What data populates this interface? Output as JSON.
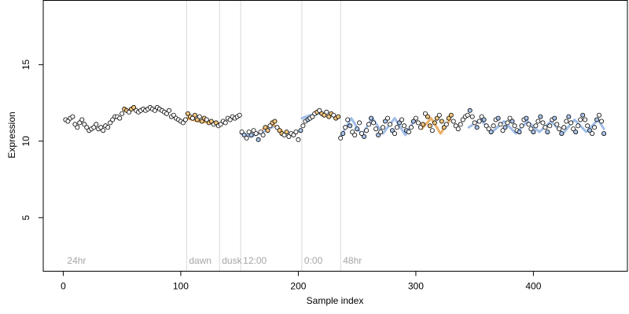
{
  "chart_data": {
    "type": "scatter",
    "title": "",
    "xlabel": "Sample index",
    "ylabel": "Expression",
    "xlim": [
      -17,
      480
    ],
    "ylim": [
      1.5,
      19.2
    ],
    "x_ticks": [
      0,
      100,
      200,
      300,
      400
    ],
    "y_ticks": [
      5,
      10,
      15
    ],
    "grid": false,
    "legend": "none",
    "phase_lines": [
      {
        "x": 105,
        "label": "dawn"
      },
      {
        "x": 133,
        "label": "dusk"
      },
      {
        "x": 151,
        "label": "12:00"
      },
      {
        "x": 203,
        "label": "0:00"
      },
      {
        "x": 236,
        "label": "48hr"
      }
    ],
    "corner_label": {
      "x": 2,
      "label": "24hr"
    },
    "colors": {
      "point_fill_a": "#f4c77f",
      "point_fill_b": "#a9c4ea",
      "point_stroke": "#000000",
      "trend_a": "#e8a04a",
      "trend_b": "#8fb0e3",
      "phase_line": "#d9d9d9",
      "phase_label": "#a6a6a6"
    },
    "trend_segments": [
      {
        "series": "orange",
        "points": [
          [
            105,
            11.5
          ],
          [
            115,
            11.3
          ],
          [
            125,
            11.2
          ],
          [
            133,
            11.1
          ]
        ]
      },
      {
        "series": "blue",
        "points": [
          [
            151,
            10.5
          ],
          [
            160,
            10.3
          ],
          [
            170,
            10.6
          ],
          [
            180,
            11.0
          ]
        ]
      },
      {
        "series": "orange",
        "points": [
          [
            170,
            10.8
          ],
          [
            178,
            11.1
          ],
          [
            186,
            10.7
          ]
        ]
      },
      {
        "series": "blue",
        "points": [
          [
            203,
            11.5
          ],
          [
            210,
            11.7
          ],
          [
            218,
            11.8
          ]
        ]
      },
      {
        "series": "blue",
        "points": [
          [
            236,
            10.3
          ],
          [
            245,
            11.5
          ],
          [
            254,
            10.4
          ],
          [
            263,
            11.5
          ],
          [
            272,
            10.5
          ],
          [
            282,
            11.5
          ],
          [
            291,
            10.4
          ],
          [
            300,
            11.5
          ]
        ]
      },
      {
        "series": "orange",
        "points": [
          [
            305,
            10.8
          ],
          [
            313,
            11.5
          ],
          [
            321,
            10.5
          ],
          [
            329,
            11.4
          ]
        ]
      },
      {
        "series": "blue",
        "points": [
          [
            345,
            10.9
          ],
          [
            355,
            11.4
          ],
          [
            365,
            10.6
          ],
          [
            375,
            11.3
          ],
          [
            385,
            10.5
          ],
          [
            395,
            11.3
          ],
          [
            405,
            10.6
          ],
          [
            415,
            11.3
          ],
          [
            425,
            10.5
          ],
          [
            435,
            11.4
          ],
          [
            445,
            10.6
          ],
          [
            455,
            11.4
          ],
          [
            460,
            10.8
          ]
        ]
      }
    ],
    "series": [
      {
        "points": [
          [
            2,
            11.4
          ],
          [
            4,
            11.3
          ],
          [
            6,
            11.5
          ],
          [
            8,
            11.6
          ],
          [
            10,
            11.1
          ],
          [
            12,
            10.9
          ],
          [
            14,
            11.2
          ],
          [
            16,
            11.4
          ],
          [
            18,
            11.1
          ],
          [
            20,
            10.9
          ],
          [
            22,
            10.7
          ],
          [
            24,
            10.8
          ],
          [
            26,
            10.9
          ],
          [
            28,
            11.1
          ],
          [
            30,
            10.8
          ],
          [
            32,
            10.9
          ],
          [
            34,
            10.7
          ],
          [
            36,
            11.0
          ],
          [
            38,
            10.9
          ],
          [
            40,
            11.2
          ],
          [
            42,
            11.4
          ],
          [
            44,
            11.6
          ],
          [
            46,
            11.6
          ],
          [
            48,
            11.5
          ],
          [
            50,
            11.8
          ],
          [
            52,
            12.1
          ],
          [
            54,
            12.0
          ],
          [
            56,
            11.9
          ],
          [
            58,
            12.1
          ],
          [
            60,
            12.2
          ],
          [
            62,
            12.0
          ],
          [
            64,
            11.9
          ],
          [
            66,
            12.0
          ],
          [
            68,
            12.1
          ],
          [
            70,
            12.0
          ],
          [
            72,
            12.1
          ],
          [
            74,
            12.2
          ],
          [
            76,
            12.1
          ],
          [
            78,
            12.0
          ],
          [
            80,
            12.2
          ],
          [
            82,
            12.1
          ],
          [
            84,
            12.0
          ],
          [
            86,
            11.9
          ],
          [
            88,
            11.8
          ],
          [
            90,
            12.0
          ],
          [
            92,
            11.6
          ],
          [
            94,
            11.7
          ],
          [
            96,
            11.5
          ],
          [
            98,
            11.4
          ],
          [
            100,
            11.3
          ],
          [
            102,
            11.2
          ],
          [
            104,
            11.4
          ],
          [
            106,
            11.8
          ],
          [
            108,
            11.6
          ],
          [
            110,
            11.5
          ],
          [
            112,
            11.7
          ],
          [
            114,
            11.4
          ],
          [
            116,
            11.6
          ],
          [
            118,
            11.3
          ],
          [
            120,
            11.5
          ],
          [
            122,
            11.4
          ],
          [
            124,
            11.2
          ],
          [
            126,
            11.3
          ],
          [
            128,
            11.1
          ],
          [
            130,
            11.2
          ],
          [
            132,
            11.0
          ],
          [
            134,
            11.1
          ],
          [
            136,
            11.3
          ],
          [
            138,
            11.2
          ],
          [
            140,
            11.5
          ],
          [
            142,
            11.4
          ],
          [
            144,
            11.6
          ],
          [
            146,
            11.5
          ],
          [
            148,
            11.6
          ],
          [
            150,
            11.7
          ],
          [
            152,
            10.6
          ],
          [
            154,
            10.4
          ],
          [
            156,
            10.2
          ],
          [
            158,
            10.6
          ],
          [
            160,
            10.4
          ],
          [
            162,
            10.7
          ],
          [
            164,
            10.5
          ],
          [
            166,
            10.1
          ],
          [
            168,
            10.6
          ],
          [
            170,
            10.4
          ],
          [
            172,
            10.9
          ],
          [
            174,
            10.7
          ],
          [
            176,
            11.0
          ],
          [
            178,
            11.2
          ],
          [
            180,
            11.3
          ],
          [
            182,
            10.9
          ],
          [
            184,
            10.7
          ],
          [
            186,
            10.5
          ],
          [
            188,
            10.4
          ],
          [
            190,
            10.6
          ],
          [
            192,
            10.3
          ],
          [
            194,
            10.5
          ],
          [
            196,
            10.4
          ],
          [
            198,
            10.6
          ],
          [
            200,
            10.1
          ],
          [
            202,
            10.7
          ],
          [
            204,
            11.0
          ],
          [
            206,
            11.3
          ],
          [
            208,
            11.4
          ],
          [
            210,
            11.5
          ],
          [
            212,
            11.6
          ],
          [
            214,
            11.8
          ],
          [
            216,
            11.9
          ],
          [
            218,
            12.0
          ],
          [
            220,
            11.8
          ],
          [
            222,
            11.7
          ],
          [
            224,
            11.9
          ],
          [
            226,
            11.6
          ],
          [
            228,
            11.8
          ],
          [
            230,
            11.7
          ],
          [
            232,
            11.5
          ],
          [
            234,
            11.6
          ],
          [
            236,
            10.2
          ],
          [
            238,
            10.5
          ],
          [
            240,
            10.9
          ],
          [
            242,
            11.4
          ],
          [
            244,
            11.0
          ],
          [
            246,
            10.6
          ],
          [
            248,
            10.4
          ],
          [
            250,
            10.8
          ],
          [
            252,
            11.2
          ],
          [
            254,
            10.5
          ],
          [
            256,
            10.3
          ],
          [
            258,
            10.7
          ],
          [
            260,
            11.1
          ],
          [
            262,
            11.5
          ],
          [
            264,
            11.2
          ],
          [
            266,
            10.8
          ],
          [
            268,
            10.4
          ],
          [
            270,
            10.6
          ],
          [
            272,
            10.9
          ],
          [
            274,
            11.3
          ],
          [
            276,
            11.5
          ],
          [
            278,
            11.1
          ],
          [
            280,
            10.7
          ],
          [
            282,
            10.5
          ],
          [
            284,
            10.9
          ],
          [
            286,
            11.2
          ],
          [
            288,
            11.4
          ],
          [
            290,
            11.0
          ],
          [
            292,
            10.7
          ],
          [
            294,
            10.6
          ],
          [
            296,
            10.9
          ],
          [
            298,
            11.3
          ],
          [
            300,
            11.5
          ],
          [
            302,
            11.2
          ],
          [
            304,
            10.9
          ],
          [
            306,
            11.1
          ],
          [
            308,
            11.8
          ],
          [
            310,
            11.6
          ],
          [
            312,
            11.0
          ],
          [
            314,
            10.7
          ],
          [
            316,
            11.2
          ],
          [
            318,
            11.5
          ],
          [
            320,
            11.7
          ],
          [
            322,
            11.3
          ],
          [
            324,
            10.9
          ],
          [
            326,
            11.1
          ],
          [
            328,
            11.5
          ],
          [
            330,
            11.7
          ],
          [
            332,
            11.3
          ],
          [
            334,
            11.0
          ],
          [
            336,
            10.8
          ],
          [
            338,
            11.1
          ],
          [
            340,
            11.4
          ],
          [
            342,
            11.6
          ],
          [
            344,
            11.7
          ],
          [
            346,
            12.0
          ],
          [
            348,
            11.6
          ],
          [
            350,
            11.2
          ],
          [
            352,
            10.9
          ],
          [
            354,
            11.3
          ],
          [
            356,
            11.6
          ],
          [
            358,
            11.4
          ],
          [
            360,
            11.0
          ],
          [
            362,
            10.8
          ],
          [
            364,
            10.6
          ],
          [
            366,
            11.0
          ],
          [
            368,
            11.4
          ],
          [
            370,
            11.5
          ],
          [
            372,
            11.1
          ],
          [
            374,
            10.7
          ],
          [
            376,
            10.9
          ],
          [
            378,
            11.2
          ],
          [
            380,
            11.5
          ],
          [
            382,
            11.3
          ],
          [
            384,
            11.0
          ],
          [
            386,
            10.7
          ],
          [
            388,
            10.6
          ],
          [
            390,
            11.0
          ],
          [
            392,
            11.4
          ],
          [
            394,
            11.5
          ],
          [
            396,
            11.1
          ],
          [
            398,
            10.8
          ],
          [
            400,
            10.6
          ],
          [
            402,
            11.0
          ],
          [
            404,
            11.3
          ],
          [
            406,
            11.6
          ],
          [
            408,
            11.2
          ],
          [
            410,
            10.9
          ],
          [
            412,
            10.6
          ],
          [
            414,
            11.0
          ],
          [
            416,
            11.4
          ],
          [
            418,
            11.5
          ],
          [
            420,
            11.1
          ],
          [
            422,
            10.8
          ],
          [
            424,
            10.5
          ],
          [
            426,
            10.9
          ],
          [
            428,
            11.3
          ],
          [
            430,
            11.6
          ],
          [
            432,
            11.2
          ],
          [
            434,
            10.8
          ],
          [
            436,
            10.6
          ],
          [
            438,
            11.0
          ],
          [
            440,
            11.4
          ],
          [
            442,
            11.7
          ],
          [
            444,
            11.4
          ],
          [
            446,
            11.0
          ],
          [
            448,
            10.7
          ],
          [
            450,
            10.5
          ],
          [
            452,
            10.9
          ],
          [
            454,
            11.4
          ],
          [
            456,
            11.7
          ],
          [
            458,
            11.3
          ],
          [
            460,
            10.5
          ]
        ]
      }
    ],
    "point_colors": {
      "orange_ranges": [
        [
          50,
          60
        ],
        [
          104,
          130
        ],
        [
          170,
          190
        ],
        [
          216,
          234
        ],
        [
          306,
          330
        ]
      ],
      "blue_ranges": [
        [
          152,
          168
        ],
        [
          200,
          212
        ],
        [
          236,
          300
        ],
        [
          344,
          460
        ]
      ]
    }
  }
}
